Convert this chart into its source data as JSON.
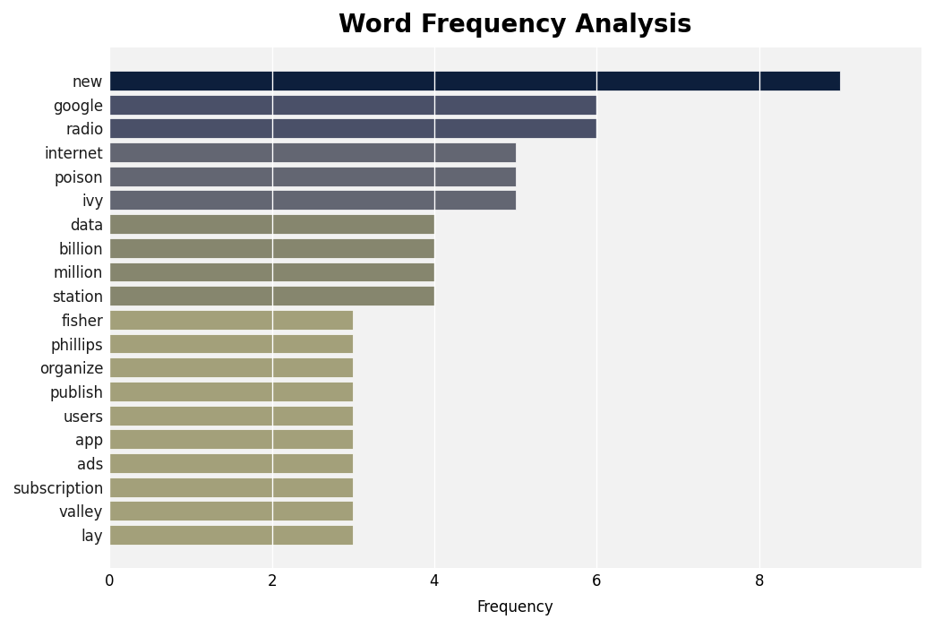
{
  "title": "Word Frequency Analysis",
  "xlabel": "Frequency",
  "categories": [
    "new",
    "google",
    "radio",
    "internet",
    "poison",
    "ivy",
    "data",
    "billion",
    "million",
    "station",
    "fisher",
    "phillips",
    "organize",
    "publish",
    "users",
    "app",
    "ads",
    "subscription",
    "valley",
    "lay"
  ],
  "values": [
    9,
    6,
    6,
    5,
    5,
    5,
    4,
    4,
    4,
    4,
    3,
    3,
    3,
    3,
    3,
    3,
    3,
    3,
    3,
    3
  ],
  "bar_colors": [
    "#0d1f3c",
    "#4a5068",
    "#4a5068",
    "#636672",
    "#636672",
    "#636672",
    "#86866e",
    "#86866e",
    "#86866e",
    "#86866e",
    "#a3a07a",
    "#a3a07a",
    "#a3a07a",
    "#a3a07a",
    "#a3a07a",
    "#a3a07a",
    "#a3a07a",
    "#a3a07a",
    "#a3a07a",
    "#a3a07a"
  ],
  "figure_facecolor": "#ffffff",
  "axes_facecolor": "#f2f2f2",
  "title_fontsize": 20,
  "label_fontsize": 12,
  "tick_fontsize": 12,
  "xlim": [
    0,
    10
  ],
  "xticks": [
    0,
    2,
    4,
    6,
    8
  ]
}
